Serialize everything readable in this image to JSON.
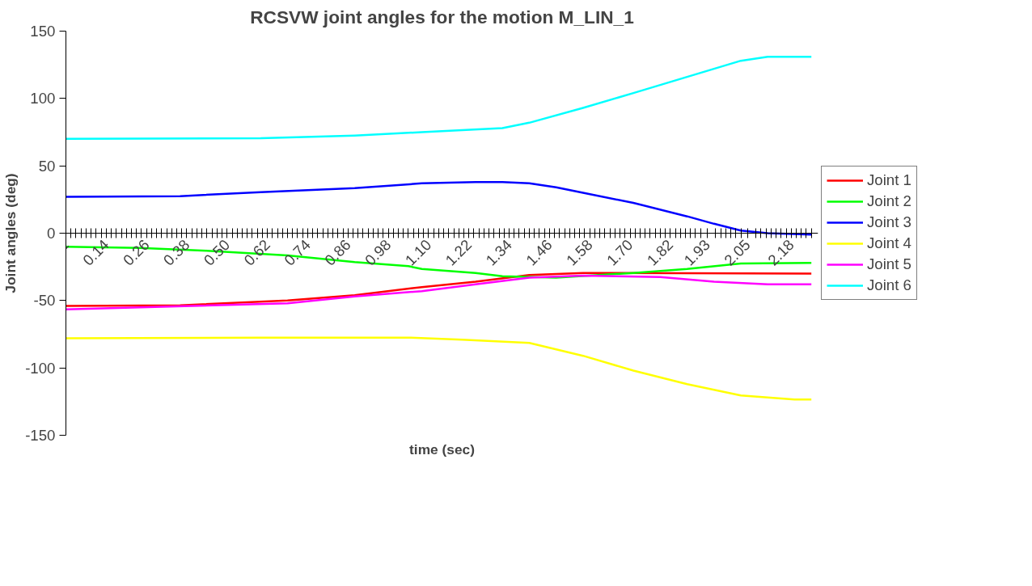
{
  "chart_data": {
    "type": "line",
    "title": "RCSVW joint angles for the motion M_LIN_1",
    "xlabel": "time (sec)",
    "ylabel": "Joint angles (deg)",
    "xlim": [
      0.02,
      2.26
    ],
    "ylim": [
      -150,
      150
    ],
    "yticks": [
      -150,
      -100,
      -50,
      0,
      50,
      100,
      150
    ],
    "xticks": [
      0.02,
      {
        "value": 0.035,
        "label": null
      },
      {
        "value": 0.05,
        "label": null
      },
      {
        "value": 0.065,
        "label": null
      },
      {
        "value": 0.08,
        "label": null
      },
      {
        "value": 0.095,
        "label": null
      },
      {
        "value": 0.11,
        "label": null
      },
      {
        "value": 0.125,
        "label": null
      },
      0.14,
      {
        "value": 0.155,
        "label": null
      },
      {
        "value": 0.17,
        "label": null
      },
      {
        "value": 0.185,
        "label": null
      },
      {
        "value": 0.2,
        "label": null
      },
      {
        "value": 0.215,
        "label": null
      },
      {
        "value": 0.23,
        "label": null
      },
      {
        "value": 0.245,
        "label": null
      },
      0.26,
      {
        "value": 0.275,
        "label": null
      },
      {
        "value": 0.29,
        "label": null
      },
      {
        "value": 0.305,
        "label": null
      },
      {
        "value": 0.32,
        "label": null
      },
      {
        "value": 0.335,
        "label": null
      },
      {
        "value": 0.35,
        "label": null
      },
      {
        "value": 0.365,
        "label": null
      },
      0.38,
      {
        "value": 0.395,
        "label": null
      },
      {
        "value": 0.41,
        "label": null
      },
      {
        "value": 0.425,
        "label": null
      },
      {
        "value": 0.44,
        "label": null
      },
      {
        "value": 0.455,
        "label": null
      },
      {
        "value": 0.47,
        "label": null
      },
      {
        "value": 0.485,
        "label": null
      },
      {
        "value": 0.5,
        "label": "0.50"
      },
      {
        "value": 0.515,
        "label": null
      },
      {
        "value": 0.53,
        "label": null
      },
      {
        "value": 0.545,
        "label": null
      },
      {
        "value": 0.56,
        "label": null
      },
      {
        "value": 0.575,
        "label": null
      },
      {
        "value": 0.59,
        "label": null
      },
      {
        "value": 0.605,
        "label": null
      },
      0.62,
      {
        "value": 0.635,
        "label": null
      },
      {
        "value": 0.65,
        "label": null
      },
      {
        "value": 0.665,
        "label": null
      },
      {
        "value": 0.68,
        "label": null
      },
      {
        "value": 0.695,
        "label": null
      },
      {
        "value": 0.71,
        "label": null
      },
      {
        "value": 0.725,
        "label": null
      },
      0.74,
      {
        "value": 0.755,
        "label": null
      },
      {
        "value": 0.77,
        "label": null
      },
      {
        "value": 0.785,
        "label": null
      },
      {
        "value": 0.8,
        "label": null
      },
      {
        "value": 0.815,
        "label": null
      },
      {
        "value": 0.83,
        "label": null
      },
      {
        "value": 0.845,
        "label": null
      },
      0.86,
      {
        "value": 0.875,
        "label": null
      },
      {
        "value": 0.89,
        "label": null
      },
      {
        "value": 0.905,
        "label": null
      },
      {
        "value": 0.92,
        "label": null
      },
      {
        "value": 0.935,
        "label": null
      },
      {
        "value": 0.95,
        "label": null
      },
      {
        "value": 0.965,
        "label": null
      },
      0.98,
      {
        "value": 0.995,
        "label": null
      },
      {
        "value": 1.01,
        "label": null
      },
      {
        "value": 1.025,
        "label": null
      },
      {
        "value": 1.04,
        "label": null
      },
      {
        "value": 1.055,
        "label": null
      },
      {
        "value": 1.07,
        "label": null
      },
      {
        "value": 1.085,
        "label": null
      },
      {
        "value": 1.1,
        "label": "1.10"
      },
      {
        "value": 1.115,
        "label": null
      },
      {
        "value": 1.13,
        "label": null
      },
      {
        "value": 1.145,
        "label": null
      },
      {
        "value": 1.16,
        "label": null
      },
      {
        "value": 1.175,
        "label": null
      },
      {
        "value": 1.19,
        "label": null
      },
      {
        "value": 1.205,
        "label": null
      },
      1.22,
      {
        "value": 1.235,
        "label": null
      },
      {
        "value": 1.25,
        "label": null
      },
      {
        "value": 1.265,
        "label": null
      },
      {
        "value": 1.28,
        "label": null
      },
      {
        "value": 1.295,
        "label": null
      },
      {
        "value": 1.31,
        "label": null
      },
      {
        "value": 1.325,
        "label": null
      },
      1.34,
      {
        "value": 1.355,
        "label": null
      },
      {
        "value": 1.37,
        "label": null
      },
      {
        "value": 1.385,
        "label": null
      },
      {
        "value": 1.4,
        "label": null
      },
      {
        "value": 1.415,
        "label": null
      },
      {
        "value": 1.43,
        "label": null
      },
      {
        "value": 1.445,
        "label": null
      },
      1.46,
      {
        "value": 1.475,
        "label": null
      },
      {
        "value": 1.49,
        "label": null
      },
      {
        "value": 1.505,
        "label": null
      },
      {
        "value": 1.52,
        "label": null
      },
      {
        "value": 1.535,
        "label": null
      },
      {
        "value": 1.55,
        "label": null
      },
      {
        "value": 1.565,
        "label": null
      },
      1.58,
      {
        "value": 1.595,
        "label": null
      },
      {
        "value": 1.61,
        "label": null
      },
      {
        "value": 1.625,
        "label": null
      },
      {
        "value": 1.64,
        "label": null
      },
      {
        "value": 1.655,
        "label": null
      },
      {
        "value": 1.67,
        "label": null
      },
      {
        "value": 1.685,
        "label": null
      },
      {
        "value": 1.7,
        "label": "1.70"
      },
      {
        "value": 1.715,
        "label": null
      },
      {
        "value": 1.73,
        "label": null
      },
      {
        "value": 1.745,
        "label": null
      },
      {
        "value": 1.76,
        "label": null
      },
      {
        "value": 1.775,
        "label": null
      },
      {
        "value": 1.79,
        "label": null
      },
      {
        "value": 1.805,
        "label": null
      },
      1.82,
      {
        "value": 1.835,
        "label": null
      },
      {
        "value": 1.85,
        "label": null
      },
      {
        "value": 1.865,
        "label": null
      },
      {
        "value": 1.88,
        "label": null
      },
      {
        "value": 1.895,
        "label": null
      },
      {
        "value": 1.91,
        "label": null
      },
      1.93,
      {
        "value": 1.955,
        "label": null
      },
      {
        "value": 1.97,
        "label": null
      },
      {
        "value": 1.985,
        "label": null
      },
      {
        "value": 2.0,
        "label": null
      },
      {
        "value": 2.015,
        "label": null
      },
      {
        "value": 2.03,
        "label": null
      },
      2.05,
      {
        "value": 2.075,
        "label": null
      },
      {
        "value": 2.09,
        "label": null
      },
      {
        "value": 2.105,
        "label": null
      },
      {
        "value": 2.12,
        "label": null
      },
      {
        "value": 2.135,
        "label": null
      },
      {
        "value": 2.15,
        "label": null
      },
      {
        "value": 2.165,
        "label": null
      },
      2.18,
      {
        "value": 2.195,
        "label": null
      },
      {
        "value": 2.21,
        "label": null
      },
      {
        "value": 2.225,
        "label": null
      },
      {
        "value": 2.24,
        "label": null
      }
    ],
    "grid": false,
    "legend": "right",
    "line_style": "solid",
    "series": [
      {
        "name": "Joint 1",
        "color": "#ff0000",
        "x": [
          0.02,
          0.36,
          0.68,
          0.88,
          1.08,
          1.24,
          1.4,
          1.56,
          2.24
        ],
        "values": [
          -54,
          -53.5,
          -50,
          -46,
          -40,
          -36,
          -31,
          -29.5,
          -30
        ]
      },
      {
        "name": "Joint 2",
        "color": "#00ff00",
        "x": [
          0.02,
          0.24,
          0.44,
          0.68,
          0.88,
          1.04,
          1.08,
          1.24,
          1.32,
          1.48,
          1.71,
          1.87,
          2.03,
          2.24
        ],
        "values": [
          -10,
          -11,
          -13,
          -16.5,
          -21.5,
          -24.5,
          -26.5,
          -29.5,
          -32,
          -33,
          -29.5,
          -26.5,
          -22.5,
          -22
        ]
      },
      {
        "name": "Joint 3",
        "color": "#0000ff",
        "x": [
          0.02,
          0.36,
          0.6,
          0.88,
          1.08,
          1.24,
          1.32,
          1.4,
          1.48,
          1.56,
          1.71,
          1.87,
          1.95,
          2.03,
          2.11,
          2.24
        ],
        "values": [
          27,
          27.5,
          30.5,
          33.5,
          37,
          38,
          38,
          37,
          34,
          30,
          22.5,
          12.5,
          7,
          2,
          0,
          -1
        ]
      },
      {
        "name": "Joint 4",
        "color": "#ffff00",
        "x": [
          0.02,
          0.6,
          1.04,
          1.2,
          1.4,
          1.56,
          1.71,
          1.87,
          2.03,
          2.19,
          2.24
        ],
        "values": [
          -78,
          -77.5,
          -77.5,
          -79,
          -81.5,
          -91,
          -102,
          -112,
          -120.5,
          -123.5,
          -123.5
        ]
      },
      {
        "name": "Joint 5",
        "color": "#ff00ff",
        "x": [
          0.02,
          0.68,
          0.88,
          1.08,
          1.24,
          1.4,
          1.56,
          1.79,
          1.95,
          2.11,
          2.24
        ],
        "values": [
          -56.5,
          -52,
          -47,
          -43,
          -38,
          -33,
          -31.5,
          -32.5,
          -36,
          -38,
          -38
        ]
      },
      {
        "name": "Joint 6",
        "color": "#00ffff",
        "x": [
          0.02,
          0.6,
          0.88,
          1.08,
          1.2,
          1.32,
          1.4,
          1.56,
          1.71,
          1.87,
          2.03,
          2.11,
          2.24
        ],
        "values": [
          70,
          70.5,
          72.5,
          75,
          76.5,
          78,
          82,
          93,
          104,
          116,
          128,
          131,
          131
        ]
      }
    ]
  }
}
